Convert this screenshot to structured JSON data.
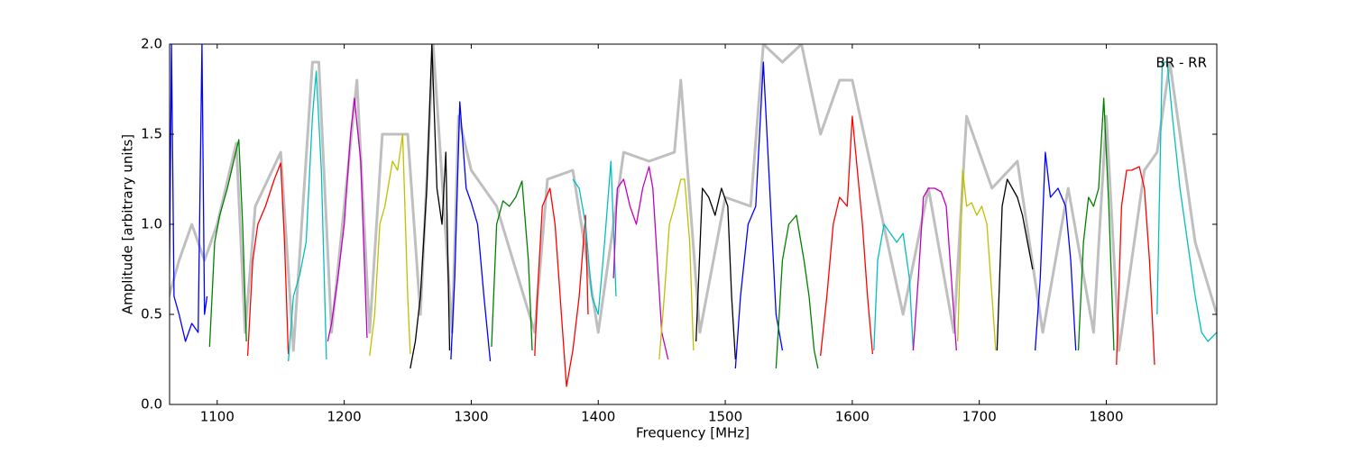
{
  "chart_data": {
    "type": "line",
    "xlabel": "Frequency [MHz]",
    "ylabel": "Amplitude [arbitrary units]",
    "annotation": "BR - RR",
    "xlim": [
      1062.5,
      1887
    ],
    "ylim": [
      0,
      2
    ],
    "xticks": [
      1100,
      1200,
      1300,
      1400,
      1500,
      1600,
      1700,
      1800
    ],
    "yticks": [
      {
        "value": 0,
        "label": "0.0"
      },
      0.5,
      {
        "value": 1,
        "label": "1.0"
      },
      1.5,
      {
        "value": 2,
        "label": "2.0"
      }
    ],
    "series": [
      {
        "color": "#bfbfbf",
        "x": [
          1062,
          1070,
          1080,
          1090,
          1100,
          1115,
          1122,
          1130,
          1150,
          1160,
          1175,
          1180,
          1190,
          1210,
          1220,
          1230,
          1250,
          1260,
          1270,
          1285,
          1290,
          1300,
          1320,
          1350,
          1360,
          1380,
          1400,
          1420,
          1440,
          1460,
          1465,
          1480,
          1500,
          1520,
          1530,
          1545,
          1560,
          1575,
          1590,
          1600,
          1620,
          1640,
          1660,
          1680,
          1690,
          1710,
          1730,
          1750,
          1770,
          1790,
          1800,
          1810,
          1830,
          1840,
          1850,
          1870,
          1887
        ],
        "values": [
          0.6,
          0.8,
          1.0,
          0.8,
          1.0,
          1.45,
          0.4,
          1.1,
          1.4,
          0.3,
          1.9,
          1.9,
          0.4,
          1.8,
          0.4,
          1.5,
          1.5,
          0.5,
          2.0,
          0.4,
          1.6,
          1.3,
          1.1,
          0.4,
          1.25,
          1.3,
          0.4,
          1.4,
          1.35,
          1.4,
          1.8,
          0.4,
          1.15,
          1.1,
          2.0,
          1.9,
          2.0,
          1.5,
          1.8,
          1.8,
          1.15,
          0.5,
          1.2,
          0.4,
          1.6,
          1.2,
          1.35,
          0.4,
          1.2,
          0.4,
          1.6,
          0.3,
          1.3,
          1.4,
          1.9,
          0.9,
          0.5
        ]
      },
      {
        "color": "#0000ff",
        "x": [
          1062,
          1064,
          1066,
          1070,
          1075,
          1080,
          1085,
          1088,
          1090,
          1092
        ],
        "values": [
          0.4,
          2.0,
          0.6,
          0.5,
          0.35,
          0.45,
          0.4,
          2.0,
          0.5,
          0.6
        ]
      },
      {
        "color": "#008000",
        "x": [
          1094,
          1098,
          1102,
          1108,
          1113,
          1117,
          1120,
          1123
        ],
        "values": [
          0.32,
          0.9,
          1.05,
          1.2,
          1.35,
          1.47,
          1.0,
          0.35
        ]
      },
      {
        "color": "#ff0000",
        "x": [
          1124,
          1128,
          1132,
          1138,
          1145,
          1150,
          1153,
          1156
        ],
        "values": [
          0.27,
          0.8,
          1.0,
          1.1,
          1.25,
          1.34,
          0.9,
          0.28
        ]
      },
      {
        "color": "#00bfbf",
        "x": [
          1156,
          1160,
          1165,
          1170,
          1175,
          1178,
          1182,
          1186
        ],
        "values": [
          0.24,
          0.6,
          0.72,
          0.9,
          1.6,
          1.85,
          1.3,
          0.25
        ]
      },
      {
        "color": "#bf00bf",
        "x": [
          1187,
          1190,
          1195,
          1200,
          1205,
          1208,
          1213,
          1218
        ],
        "values": [
          0.35,
          0.45,
          0.7,
          1.0,
          1.5,
          1.7,
          1.35,
          0.37
        ]
      },
      {
        "color": "#bfbf00",
        "x": [
          1220,
          1224,
          1228,
          1232,
          1238,
          1242,
          1246,
          1250,
          1252
        ],
        "values": [
          0.27,
          0.5,
          1.0,
          1.1,
          1.35,
          1.3,
          1.5,
          0.6,
          0.28
        ]
      },
      {
        "color": "#000000",
        "x": [
          1252,
          1256,
          1260,
          1265,
          1269,
          1273,
          1277,
          1280,
          1283
        ],
        "values": [
          0.2,
          0.35,
          0.6,
          1.2,
          2.0,
          1.2,
          1.0,
          1.4,
          0.3
        ]
      },
      {
        "color": "#0000ff",
        "x": [
          1284,
          1287,
          1291,
          1296,
          1300,
          1305,
          1310,
          1315
        ],
        "values": [
          0.25,
          0.7,
          1.68,
          1.2,
          1.12,
          1.0,
          0.6,
          0.24
        ]
      },
      {
        "color": "#008000",
        "x": [
          1316,
          1320,
          1325,
          1330,
          1335,
          1340,
          1345,
          1348
        ],
        "values": [
          0.32,
          1.0,
          1.13,
          1.1,
          1.15,
          1.24,
          0.8,
          0.3
        ]
      },
      {
        "color": "#ff0000",
        "x": [
          1350,
          1352,
          1356,
          1362,
          1366,
          1370,
          1375,
          1380,
          1385,
          1390,
          1392
        ],
        "values": [
          0.27,
          0.6,
          1.1,
          1.2,
          1.0,
          0.6,
          0.1,
          0.3,
          0.6,
          1.05,
          0.5
        ]
      },
      {
        "color": "#00bfbf",
        "x": [
          1380,
          1385,
          1390,
          1395,
          1400,
          1405,
          1410,
          1414
        ],
        "values": [
          1.25,
          1.2,
          1.0,
          0.6,
          0.5,
          0.9,
          1.35,
          0.6
        ]
      },
      {
        "color": "#bf00bf",
        "x": [
          1412,
          1415,
          1420,
          1425,
          1430,
          1435,
          1440,
          1443,
          1450,
          1455
        ],
        "values": [
          0.7,
          1.2,
          1.25,
          1.1,
          1.0,
          1.2,
          1.32,
          1.2,
          0.4,
          0.25
        ]
      },
      {
        "color": "#bfbf00",
        "x": [
          1448,
          1452,
          1456,
          1460,
          1465,
          1468,
          1472,
          1475
        ],
        "values": [
          0.25,
          0.6,
          1.0,
          1.1,
          1.25,
          1.25,
          0.9,
          0.3
        ]
      },
      {
        "color": "#000000",
        "x": [
          1477,
          1482,
          1487,
          1492,
          1497,
          1502,
          1505,
          1508
        ],
        "values": [
          0.35,
          1.2,
          1.15,
          1.05,
          1.2,
          1.1,
          0.6,
          0.25
        ]
      },
      {
        "color": "#0000ff",
        "x": [
          1508,
          1512,
          1518,
          1524,
          1530,
          1535,
          1540,
          1545
        ],
        "values": [
          0.2,
          0.6,
          1.0,
          1.1,
          1.9,
          1.2,
          0.5,
          0.3
        ]
      },
      {
        "color": "#008000",
        "x": [
          1540,
          1545,
          1550,
          1556,
          1562,
          1566,
          1570,
          1573
        ],
        "values": [
          0.2,
          0.8,
          1.0,
          1.05,
          0.8,
          0.6,
          0.3,
          0.2
        ]
      },
      {
        "color": "#ff0000",
        "x": [
          1575,
          1580,
          1585,
          1590,
          1596,
          1600,
          1604,
          1608,
          1612,
          1616
        ],
        "values": [
          0.27,
          0.6,
          1.0,
          1.15,
          1.1,
          1.6,
          1.3,
          1.0,
          0.6,
          0.28
        ]
      },
      {
        "color": "#00bfbf",
        "x": [
          1617,
          1620,
          1625,
          1630,
          1635,
          1640,
          1645,
          1648
        ],
        "values": [
          0.3,
          0.8,
          1.0,
          0.95,
          0.9,
          0.95,
          0.7,
          0.3
        ]
      },
      {
        "color": "#bf00bf",
        "x": [
          1648,
          1652,
          1656,
          1660,
          1665,
          1670,
          1674,
          1678,
          1682
        ],
        "values": [
          0.3,
          0.7,
          1.15,
          1.2,
          1.2,
          1.18,
          1.1,
          0.7,
          0.3
        ]
      },
      {
        "color": "#bfbf00",
        "x": [
          1683,
          1687,
          1690,
          1694,
          1698,
          1702,
          1706,
          1710,
          1713
        ],
        "values": [
          0.35,
          1.3,
          1.1,
          1.12,
          1.05,
          1.1,
          1.0,
          0.6,
          0.3
        ]
      },
      {
        "color": "#000000",
        "x": [
          1714,
          1718,
          1722,
          1726,
          1730,
          1734,
          1738,
          1742
        ],
        "values": [
          0.3,
          1.1,
          1.25,
          1.2,
          1.15,
          1.05,
          0.9,
          0.75
        ]
      },
      {
        "color": "#0000ff",
        "x": [
          1744,
          1748,
          1752,
          1756,
          1762,
          1768,
          1772,
          1776
        ],
        "values": [
          0.3,
          0.7,
          1.4,
          1.15,
          1.2,
          1.1,
          0.8,
          0.3
        ]
      },
      {
        "color": "#008000",
        "x": [
          1778,
          1782,
          1786,
          1790,
          1794,
          1798,
          1802,
          1806
        ],
        "values": [
          0.3,
          0.9,
          1.15,
          1.1,
          1.2,
          1.7,
          1.1,
          0.3
        ]
      },
      {
        "color": "#ff0000",
        "x": [
          1808,
          1812,
          1816,
          1820,
          1826,
          1830,
          1834,
          1838
        ],
        "values": [
          0.22,
          1.1,
          1.3,
          1.3,
          1.32,
          1.2,
          0.8,
          0.22
        ]
      },
      {
        "color": "#00bfbf",
        "x": [
          1840,
          1844,
          1848,
          1852,
          1858,
          1864,
          1870,
          1875,
          1880,
          1887
        ],
        "values": [
          0.5,
          1.9,
          1.9,
          1.6,
          1.2,
          0.9,
          0.6,
          0.4,
          0.35,
          0.4
        ]
      }
    ]
  }
}
